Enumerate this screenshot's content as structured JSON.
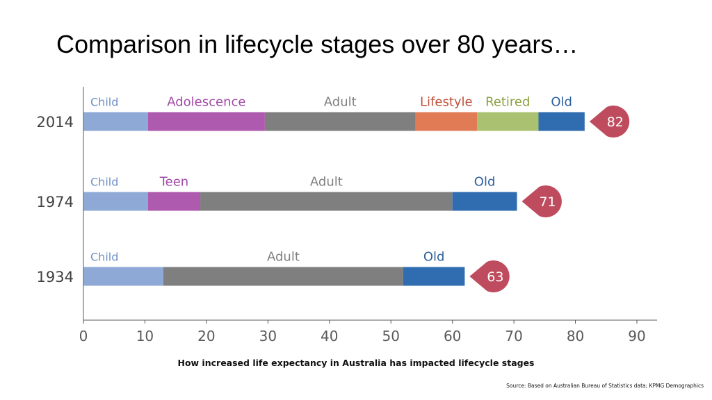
{
  "title": "Comparison in lifecycle stages over 80 years…",
  "chart_data": {
    "type": "bar",
    "orientation": "horizontal",
    "stacked": true,
    "categories": [
      "2014",
      "1974",
      "1934"
    ],
    "xlim": [
      0,
      90
    ],
    "xticks": [
      0,
      10,
      20,
      30,
      40,
      50,
      60,
      70,
      80,
      90
    ],
    "grid": false,
    "rows": [
      {
        "year": "2014",
        "life_expectancy": "82",
        "segments": [
          {
            "label": "Child",
            "start": 0,
            "end": 10.5,
            "color": "#8EA9D6",
            "label_color": "#6E8FC6"
          },
          {
            "label": "Adolescence",
            "start": 10.5,
            "end": 29.5,
            "color": "#AE5AAE",
            "label_color": "#A24AA6"
          },
          {
            "label": "Adult",
            "start": 29.5,
            "end": 54,
            "color": "#7F7F7F",
            "label_color": "#7F7F7F"
          },
          {
            "label": "Lifestyle",
            "start": 54,
            "end": 64,
            "color": "#E07B56",
            "label_color": "#C0503A"
          },
          {
            "label": "Retired",
            "start": 64,
            "end": 74,
            "color": "#A9C170",
            "label_color": "#8AA040"
          },
          {
            "label": "Old",
            "start": 74,
            "end": 81.5,
            "color": "#2F6CB0",
            "label_color": "#2F5F9E"
          }
        ]
      },
      {
        "year": "1974",
        "life_expectancy": "71",
        "segments": [
          {
            "label": "Child",
            "start": 0,
            "end": 10.5,
            "color": "#8EA9D6",
            "label_color": "#6E8FC6"
          },
          {
            "label": "Teen",
            "start": 10.5,
            "end": 19,
            "color": "#AE5AAE",
            "label_color": "#A24AA6"
          },
          {
            "label": "Adult",
            "start": 19,
            "end": 60,
            "color": "#7F7F7F",
            "label_color": "#7F7F7F"
          },
          {
            "label": "Old",
            "start": 60,
            "end": 70.5,
            "color": "#2F6CB0",
            "label_color": "#2F5F9E"
          }
        ]
      },
      {
        "year": "1934",
        "life_expectancy": "63",
        "segments": [
          {
            "label": "Child",
            "start": 0,
            "end": 13,
            "color": "#8EA9D6",
            "label_color": "#6E8FC6"
          },
          {
            "label": "Adult",
            "start": 13,
            "end": 52,
            "color": "#7F7F7F",
            "label_color": "#7F7F7F"
          },
          {
            "label": "Old",
            "start": 52,
            "end": 62,
            "color": "#2F6CB0",
            "label_color": "#2F5F9E"
          }
        ]
      }
    ],
    "marker_color": "#BE4B5E"
  },
  "caption": "How increased life expectancy in Australia has impacted lifecycle stages",
  "source": "Source: Based on Australian Bureau of Statistics data; KPMG Demographics"
}
